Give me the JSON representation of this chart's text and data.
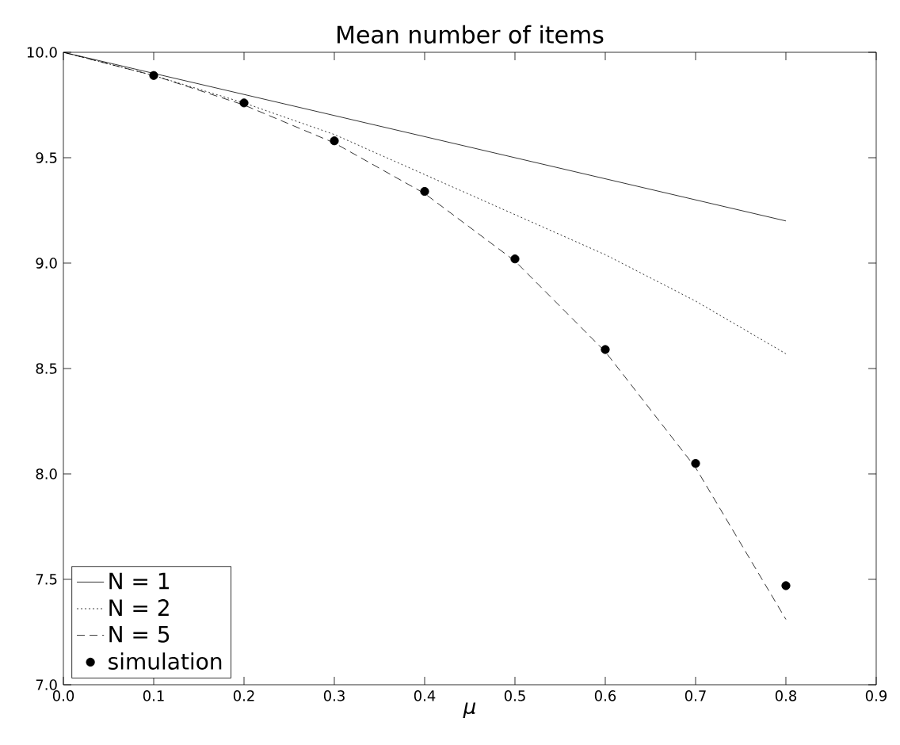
{
  "chart_data": {
    "type": "line",
    "title": "Mean number of items",
    "xlabel": "μ",
    "xlim": [
      0,
      0.9
    ],
    "ylim": [
      7,
      10
    ],
    "xticks": [
      {
        "value": 0,
        "label": "0.0"
      },
      {
        "value": 0.1,
        "label": "0.1"
      },
      {
        "value": 0.2,
        "label": "0.2"
      },
      {
        "value": 0.3,
        "label": "0.3"
      },
      {
        "value": 0.4,
        "label": "0.4"
      },
      {
        "value": 0.5,
        "label": "0.5"
      },
      {
        "value": 0.6,
        "label": "0.6"
      },
      {
        "value": 0.7,
        "label": "0.7"
      },
      {
        "value": 0.8,
        "label": "0.8"
      },
      {
        "value": 0.9,
        "label": "0.9"
      }
    ],
    "yticks": [
      {
        "value": 7,
        "label": "7.0"
      },
      {
        "value": 7.5,
        "label": "7.5"
      },
      {
        "value": 8,
        "label": "8.0"
      },
      {
        "value": 8.5,
        "label": "8.5"
      },
      {
        "value": 9,
        "label": "9.0"
      },
      {
        "value": 9.5,
        "label": "9.5"
      },
      {
        "value": 10,
        "label": "10.0"
      }
    ],
    "grid": false,
    "legend": "bottom left",
    "series": [
      {
        "name": "N = 1",
        "color": "#000000",
        "line_style": "solid",
        "marker": "none",
        "x": [
          0,
          0.8
        ],
        "values": [
          10,
          9.2
        ]
      },
      {
        "name": "N = 2",
        "color": "#000000",
        "line_style": "dotted",
        "marker": "none",
        "x": [
          0,
          0.1,
          0.2,
          0.3,
          0.4,
          0.5,
          0.6,
          0.7,
          0.8
        ],
        "values": [
          10,
          9.89,
          9.76,
          9.61,
          9.42,
          9.23,
          9.04,
          8.82,
          8.57
        ]
      },
      {
        "name": "N = 5",
        "color": "#000000",
        "line_style": "dashed",
        "marker": "none",
        "x": [
          0,
          0.1,
          0.2,
          0.3,
          0.4,
          0.5,
          0.6,
          0.7,
          0.8
        ],
        "values": [
          10,
          9.89,
          9.75,
          9.57,
          9.33,
          9.01,
          8.58,
          8.03,
          7.31
        ]
      },
      {
        "name": "simulation",
        "type": "scatter",
        "color": "#000000",
        "marker": "circle",
        "x": [
          0.1,
          0.2,
          0.3,
          0.4,
          0.5,
          0.6,
          0.7,
          0.8
        ],
        "values": [
          9.89,
          9.76,
          9.58,
          9.34,
          9.02,
          8.59,
          8.05,
          7.47
        ]
      }
    ]
  }
}
